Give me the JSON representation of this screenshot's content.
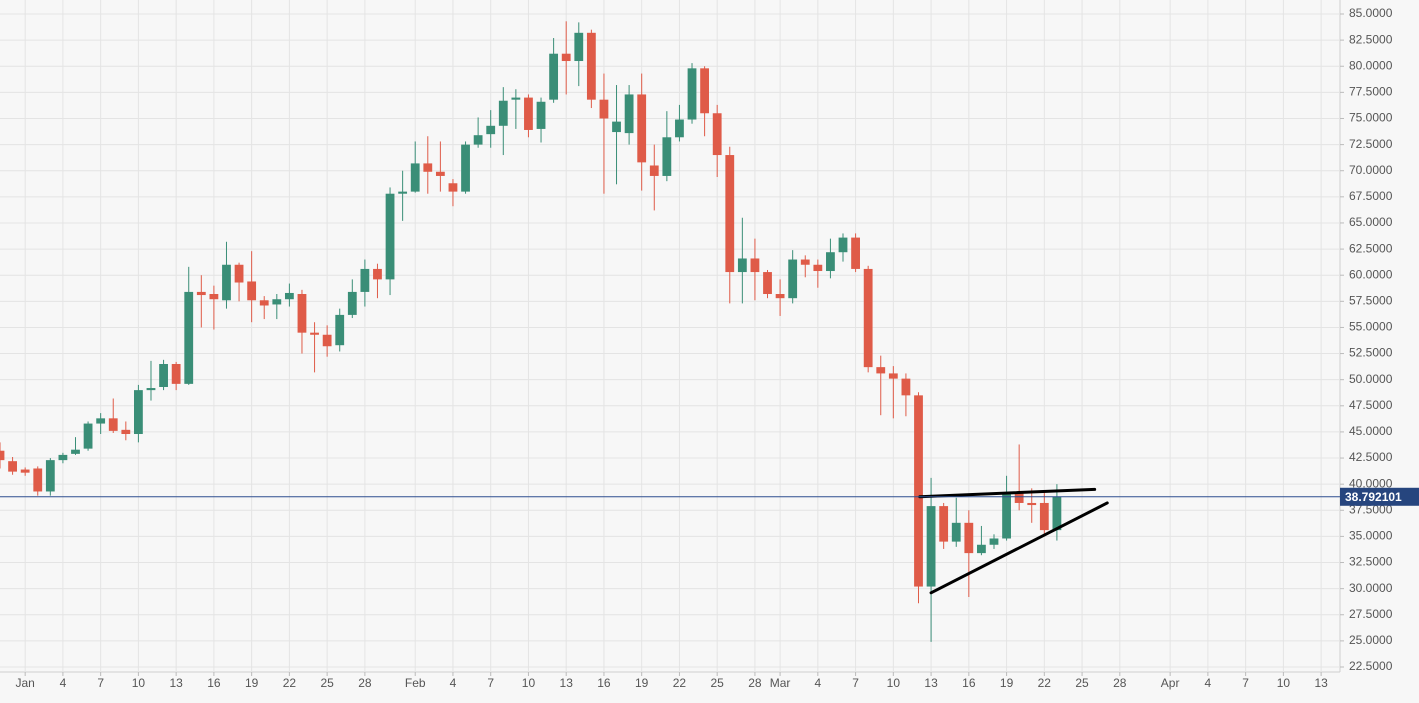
{
  "chart_data": {
    "type": "candlestick",
    "xlim": [
      -1,
      105.5
    ],
    "ylim": [
      22.5,
      85
    ],
    "xticks": [
      {
        "value": 1,
        "label": "Jan"
      },
      {
        "value": 4,
        "label": "4"
      },
      {
        "value": 7,
        "label": "7"
      },
      {
        "value": 10,
        "label": "10"
      },
      {
        "value": 13,
        "label": "13"
      },
      {
        "value": 16,
        "label": "16"
      },
      {
        "value": 19,
        "label": "19"
      },
      {
        "value": 22,
        "label": "22"
      },
      {
        "value": 25,
        "label": "25"
      },
      {
        "value": 28,
        "label": "28"
      },
      {
        "value": 32,
        "label": "Feb"
      },
      {
        "value": 35,
        "label": "4"
      },
      {
        "value": 38,
        "label": "7"
      },
      {
        "value": 41,
        "label": "10"
      },
      {
        "value": 44,
        "label": "13"
      },
      {
        "value": 47,
        "label": "16"
      },
      {
        "value": 50,
        "label": "19"
      },
      {
        "value": 53,
        "label": "22"
      },
      {
        "value": 56,
        "label": "25"
      },
      {
        "value": 59,
        "label": "28"
      },
      {
        "value": 61,
        "label": "Mar"
      },
      {
        "value": 64,
        "label": "4"
      },
      {
        "value": 67,
        "label": "7"
      },
      {
        "value": 70,
        "label": "10"
      },
      {
        "value": 73,
        "label": "13"
      },
      {
        "value": 76,
        "label": "16"
      },
      {
        "value": 79,
        "label": "19"
      },
      {
        "value": 82,
        "label": "22"
      },
      {
        "value": 85,
        "label": "25"
      },
      {
        "value": 88,
        "label": "28"
      },
      {
        "value": 92,
        "label": "Apr"
      },
      {
        "value": 95,
        "label": "4"
      },
      {
        "value": 98,
        "label": "7"
      },
      {
        "value": 101,
        "label": "10"
      },
      {
        "value": 104,
        "label": "13"
      }
    ],
    "yticks": [
      {
        "value": 22.5,
        "label": "22.5000"
      },
      {
        "value": 25,
        "label": "25.0000"
      },
      {
        "value": 27.5,
        "label": "27.5000"
      },
      {
        "value": 30,
        "label": "30.0000"
      },
      {
        "value": 32.5,
        "label": "32.5000"
      },
      {
        "value": 35,
        "label": "35.0000"
      },
      {
        "value": 37.5,
        "label": "37.5000"
      },
      {
        "value": 40,
        "label": "40.0000"
      },
      {
        "value": 42.5,
        "label": "42.5000"
      },
      {
        "value": 45,
        "label": "45.0000"
      },
      {
        "value": 47.5,
        "label": "47.5000"
      },
      {
        "value": 50,
        "label": "50.0000"
      },
      {
        "value": 52.5,
        "label": "52.5000"
      },
      {
        "value": 55,
        "label": "55.0000"
      },
      {
        "value": 57.5,
        "label": "57.5000"
      },
      {
        "value": 60,
        "label": "60.0000"
      },
      {
        "value": 62.5,
        "label": "62.5000"
      },
      {
        "value": 65,
        "label": "65.0000"
      },
      {
        "value": 67.5,
        "label": "67.5000"
      },
      {
        "value": 70,
        "label": "70.0000"
      },
      {
        "value": 72.5,
        "label": "72.5000"
      },
      {
        "value": 75,
        "label": "75.0000"
      },
      {
        "value": 77.5,
        "label": "77.5000"
      },
      {
        "value": 80,
        "label": "80.0000"
      },
      {
        "value": 82.5,
        "label": "82.5000"
      },
      {
        "value": 85,
        "label": "85.0000"
      }
    ],
    "grid": true,
    "up_color": "#3a8e77",
    "down_color": "#df5b48",
    "x": [
      -1,
      0,
      1,
      2,
      3,
      4,
      5,
      6,
      7,
      8,
      9,
      10,
      11,
      12,
      13,
      14,
      15,
      16,
      17,
      18,
      19,
      20,
      21,
      22,
      23,
      24,
      25,
      26,
      27,
      28,
      29,
      30,
      31,
      32,
      33,
      34,
      35,
      36,
      37,
      38,
      39,
      40,
      41,
      42,
      43,
      44,
      45,
      46,
      47,
      48,
      49,
      50,
      51,
      52,
      53,
      54,
      55,
      56,
      57,
      58,
      59,
      60,
      61,
      62,
      63,
      64,
      65,
      66,
      67,
      68,
      69,
      70,
      71,
      72,
      73,
      74,
      75,
      76,
      77,
      78,
      79,
      80,
      81,
      82,
      83
    ],
    "open": [
      43.2,
      42.2,
      41.4,
      41.5,
      39.3,
      42.3,
      42.9,
      43.4,
      45.8,
      46.3,
      45.2,
      44.8,
      49.0,
      49.3,
      51.5,
      49.6,
      58.4,
      58.2,
      57.6,
      61.0,
      59.4,
      57.6,
      57.2,
      57.7,
      58.2,
      54.5,
      54.3,
      53.3,
      56.2,
      58.4,
      60.6,
      59.6,
      67.8,
      68.0,
      70.7,
      69.9,
      68.8,
      68.0,
      72.5,
      73.5,
      74.3,
      76.8,
      77.0,
      74.0,
      76.8,
      81.2,
      80.5,
      83.2,
      76.8,
      73.7,
      73.6,
      77.3,
      70.5,
      69.5,
      73.2,
      74.9,
      79.8,
      75.5,
      71.5,
      60.3,
      61.6,
      60.3,
      58.2,
      57.8,
      61.5,
      61.0,
      60.4,
      62.2,
      63.6,
      60.6,
      51.2,
      50.6,
      50.1,
      48.5,
      30.2,
      37.9,
      34.5,
      36.3,
      33.4,
      34.2,
      34.8,
      39.1,
      38.2,
      38.2,
      35.6
    ],
    "high": [
      44.0,
      42.6,
      41.6,
      41.7,
      42.5,
      43.0,
      44.5,
      46.0,
      46.8,
      48.2,
      46.0,
      49.5,
      51.8,
      51.9,
      51.7,
      60.8,
      60.0,
      59.0,
      63.2,
      61.2,
      62.3,
      58.0,
      58.2,
      59.2,
      58.6,
      55.5,
      55.2,
      56.8,
      59.6,
      61.5,
      61.1,
      68.4,
      70.0,
      72.8,
      73.3,
      72.8,
      69.2,
      72.8,
      75.1,
      75.8,
      78.0,
      77.8,
      77.3,
      77.0,
      82.7,
      84.3,
      84.2,
      83.5,
      79.3,
      78.2,
      78.2,
      79.3,
      72.5,
      75.7,
      76.3,
      80.3,
      80.0,
      76.3,
      72.3,
      65.5,
      63.5,
      60.5,
      59.6,
      62.4,
      61.9,
      61.5,
      63.5,
      64.0,
      64.0,
      60.9,
      52.3,
      51.3,
      50.6,
      48.8,
      40.6,
      38.2,
      38.7,
      37.5,
      36.0,
      35.2,
      40.8,
      43.8,
      39.6,
      39.3,
      40.0
    ],
    "low": [
      41.5,
      40.9,
      40.8,
      38.9,
      38.9,
      42.0,
      42.8,
      43.2,
      44.8,
      44.9,
      44.2,
      44.0,
      48.0,
      49.0,
      49.0,
      49.5,
      55.0,
      54.8,
      56.8,
      57.5,
      55.5,
      55.8,
      55.8,
      57.0,
      52.5,
      50.7,
      52.2,
      52.7,
      55.9,
      57.0,
      57.8,
      58.1,
      65.2,
      67.9,
      67.8,
      68.0,
      66.6,
      67.8,
      72.2,
      72.2,
      71.5,
      74.0,
      73.2,
      72.7,
      76.5,
      77.3,
      78.1,
      76.0,
      67.8,
      68.7,
      72.5,
      68.1,
      66.2,
      69.0,
      72.8,
      74.5,
      73.3,
      69.4,
      57.3,
      57.3,
      57.6,
      57.8,
      56.1,
      57.3,
      59.8,
      58.8,
      59.7,
      61.3,
      60.3,
      50.7,
      46.6,
      46.3,
      46.5,
      28.6,
      24.9,
      33.8,
      34.0,
      29.2,
      33.2,
      33.8,
      34.6,
      37.5,
      36.3,
      35.0,
      34.6
    ],
    "close": [
      42.3,
      41.2,
      41.1,
      39.3,
      42.3,
      42.8,
      43.3,
      45.8,
      46.3,
      45.1,
      44.8,
      49.0,
      49.2,
      51.5,
      49.6,
      58.4,
      58.1,
      57.7,
      61.0,
      59.3,
      57.6,
      57.1,
      57.7,
      58.3,
      54.5,
      54.3,
      53.2,
      56.2,
      58.4,
      60.6,
      59.6,
      67.8,
      68.0,
      70.7,
      69.9,
      69.5,
      68.0,
      72.5,
      73.4,
      74.3,
      76.7,
      77.0,
      73.9,
      76.6,
      81.2,
      80.5,
      83.2,
      76.8,
      75.0,
      74.7,
      77.3,
      70.8,
      69.5,
      73.2,
      74.9,
      79.8,
      75.5,
      71.5,
      60.3,
      61.6,
      60.3,
      58.2,
      57.8,
      61.5,
      61.0,
      60.4,
      62.2,
      63.6,
      60.6,
      51.2,
      50.6,
      50.1,
      48.5,
      30.2,
      37.9,
      34.5,
      36.3,
      33.4,
      34.2,
      34.8,
      39.1,
      38.2,
      38.0,
      35.6,
      38.8
    ],
    "last_price": 38.792101,
    "trendlines": [
      {
        "x": [
          72.1,
          86
        ],
        "y": [
          38.8,
          39.5
        ]
      },
      {
        "x": [
          73,
          87
        ],
        "y": [
          29.6,
          38.2
        ]
      }
    ]
  }
}
